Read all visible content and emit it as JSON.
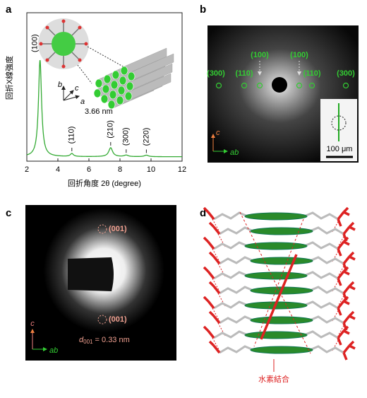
{
  "panel_a": {
    "letter": "a",
    "y_label": "回折X線強度",
    "x_label": "回折角度 2θ (degree)",
    "xlim": [
      2,
      12
    ],
    "xticks": [
      2,
      4,
      6,
      8,
      10,
      12
    ],
    "ylim": [
      0,
      100
    ],
    "baseline": 3,
    "peaks": [
      {
        "label": "(100)",
        "position": 2.85,
        "height": 65,
        "width": 0.12
      },
      {
        "label": "(110)",
        "position": 4.9,
        "height": 2,
        "width": 0.12
      },
      {
        "label": "(210)",
        "position": 7.4,
        "height": 6,
        "width": 0.15
      },
      {
        "label": "(300)",
        "position": 8.4,
        "height": 1,
        "width": 0.15
      },
      {
        "label": "(220)",
        "position": 9.7,
        "height": 1,
        "width": 0.15
      }
    ],
    "inset": {
      "spacing": "3.66 nm",
      "axis_a": "a",
      "axis_b": "b",
      "axis_c": "c"
    }
  },
  "panel_b": {
    "letter": "b",
    "reflections": [
      "(300)",
      "(110)",
      "(100)",
      "(100)",
      "(110)",
      "(300)"
    ],
    "axis_c": "c",
    "axis_ab": "ab",
    "scale_bar": "100 μm"
  },
  "panel_c": {
    "letter": "c",
    "reflections": [
      "(001)",
      "(001)"
    ],
    "d_symbol": "d",
    "d_subscript": "001",
    "d_value": " = 0.33 nm",
    "axis_c": "c",
    "axis_ab": "ab"
  },
  "panel_d": {
    "letter": "d",
    "annotation": "水素結合"
  }
}
